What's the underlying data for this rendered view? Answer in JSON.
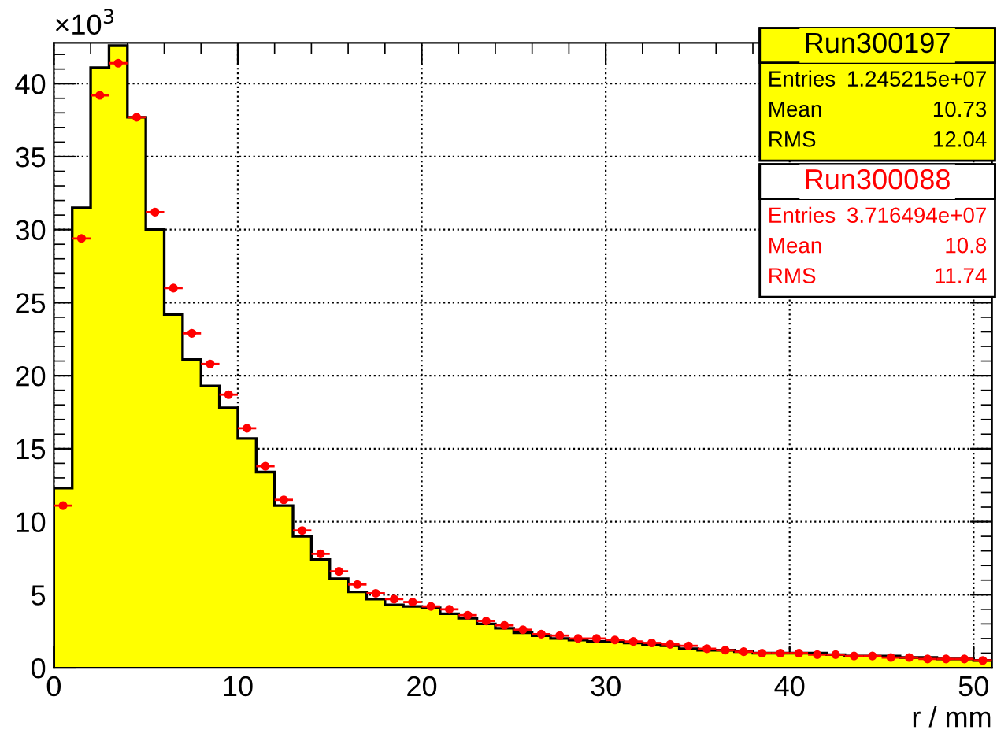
{
  "chart_data": {
    "type": "histogram",
    "xlabel": "r / mm",
    "ylabel": "×10$^{3}$",
    "bins": [
      0,
      1,
      2,
      3,
      4,
      5,
      6,
      7,
      8,
      9,
      10,
      11,
      12,
      13,
      14,
      15,
      16,
      17,
      18,
      19,
      20,
      21,
      22,
      23,
      24,
      25,
      26,
      27,
      28,
      29,
      30,
      31,
      32,
      33,
      34,
      35,
      36,
      37,
      38,
      39,
      40,
      41,
      42,
      43,
      44,
      45,
      46,
      47,
      48,
      49,
      50,
      51
    ],
    "series": [
      {
        "name": "Run300197",
        "color": "#ffff00",
        "values": [
          12.3,
          31.5,
          41.1,
          42.6,
          37.7,
          30.0,
          24.2,
          21.1,
          19.3,
          17.8,
          15.7,
          13.4,
          11.1,
          9.0,
          7.4,
          6.1,
          5.2,
          4.7,
          4.3,
          4.2,
          4.1,
          3.7,
          3.4,
          3.0,
          2.7,
          2.4,
          2.2,
          2.0,
          1.9,
          1.8,
          1.8,
          1.7,
          1.6,
          1.5,
          1.3,
          1.2,
          1.2,
          1.1,
          1.0,
          1.0,
          1.0,
          1.0,
          0.9,
          0.8,
          0.8,
          0.8,
          0.7,
          0.7,
          0.6,
          0.6,
          0.5
        ]
      },
      {
        "name": "Run300088",
        "type": "scatter",
        "color": "#ff0000",
        "x": [
          0.5,
          1.5,
          2.5,
          3.5,
          4.5,
          5.5,
          6.5,
          7.5,
          8.5,
          9.5,
          10.5,
          11.5,
          12.5,
          13.5,
          14.5,
          15.5,
          16.5,
          17.5,
          18.5,
          19.5,
          20.5,
          21.5,
          22.5,
          23.5,
          24.5,
          25.5,
          26.5,
          27.5,
          28.5,
          29.5,
          30.5,
          31.5,
          32.5,
          33.5,
          34.5,
          35.5,
          36.5,
          37.5,
          38.5,
          39.5,
          40.5,
          41.5,
          42.5,
          43.5,
          44.5,
          45.5,
          46.5,
          47.5,
          48.5,
          49.5,
          50.5
        ],
        "values": [
          11.1,
          29.4,
          39.2,
          41.4,
          37.7,
          31.2,
          26.0,
          22.9,
          20.8,
          18.7,
          16.4,
          13.8,
          11.5,
          9.4,
          7.8,
          6.6,
          5.7,
          5.1,
          4.7,
          4.5,
          4.2,
          4.0,
          3.6,
          3.2,
          2.9,
          2.6,
          2.3,
          2.2,
          2.0,
          2.0,
          1.9,
          1.8,
          1.7,
          1.6,
          1.5,
          1.3,
          1.2,
          1.1,
          1.0,
          1.0,
          1.0,
          0.9,
          0.9,
          0.8,
          0.8,
          0.7,
          0.7,
          0.6,
          0.6,
          0.6,
          0.5
        ],
        "xerrors": [
          0.5,
          0.5,
          0.5,
          0.5,
          0.5,
          0.5,
          0.5,
          0.5,
          0.5,
          0.5,
          0.5,
          0.5,
          0.5,
          0.5,
          0.5,
          0.5,
          0.5,
          0.5,
          0.5,
          0.5,
          0.5,
          0.5,
          0.5,
          0.5,
          0.5,
          0.5,
          0.5,
          0.5,
          0.5,
          0.5,
          0.5,
          0.5,
          0.5,
          0.5,
          0.5,
          0.5,
          0.5,
          0.5,
          0.5,
          0.5,
          0.5,
          0.5,
          0.5,
          0.5,
          0.5,
          0.5,
          0.5,
          0.5,
          0.5,
          0.5,
          0.5
        ],
        "marker": "circle"
      }
    ],
    "annotations": [
      "Entries 1.245215e+07",
      "Mean 10.73",
      "RMS 12.04",
      "Entries 3.716494e+07",
      "Mean 10.8",
      "RMS 11.74"
    ],
    "xlim": [
      0,
      51
    ],
    "ylim": [
      0,
      42.8
    ],
    "xticks": [
      0,
      10,
      20,
      30,
      40,
      50
    ],
    "yticks": [
      0,
      5,
      10,
      15,
      20,
      25,
      30,
      35,
      40
    ],
    "grid": true,
    "legend": "top right"
  }
}
